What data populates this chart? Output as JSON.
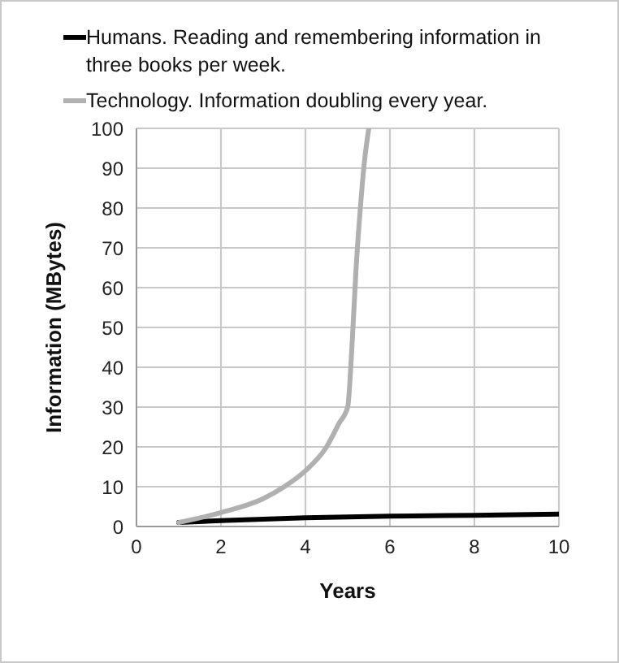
{
  "chart_data": {
    "type": "line",
    "xlabel": "Years",
    "ylabel": "Information (MBytes)",
    "series": [
      {
        "name": "Humans. Reading and remembering information in three books per week.",
        "color": "#000000",
        "x": [
          1,
          2,
          4,
          6,
          8,
          10
        ],
        "values": [
          1,
          1.5,
          2.2,
          2.6,
          2.8,
          3.1
        ]
      },
      {
        "name": "Technology. Information doubling every year.",
        "color": "#b0b0b0",
        "x": [
          1,
          2,
          3,
          3.5,
          4,
          4.5,
          4.8,
          5,
          5.1,
          5.2,
          5.3,
          5.4,
          5.5
        ],
        "values": [
          1,
          3.5,
          7,
          10,
          14,
          20,
          26,
          30,
          45,
          65,
          80,
          92,
          100
        ]
      }
    ],
    "xlim": [
      0,
      10
    ],
    "xticks": [
      0,
      2,
      4,
      6,
      8,
      10
    ],
    "ylim": [
      0,
      100
    ],
    "yticks": [
      0,
      10,
      20,
      30,
      40,
      50,
      60,
      70,
      80,
      90,
      100
    ],
    "grid": true,
    "legend": "top",
    "marker": "none",
    "line_style": "solid"
  }
}
